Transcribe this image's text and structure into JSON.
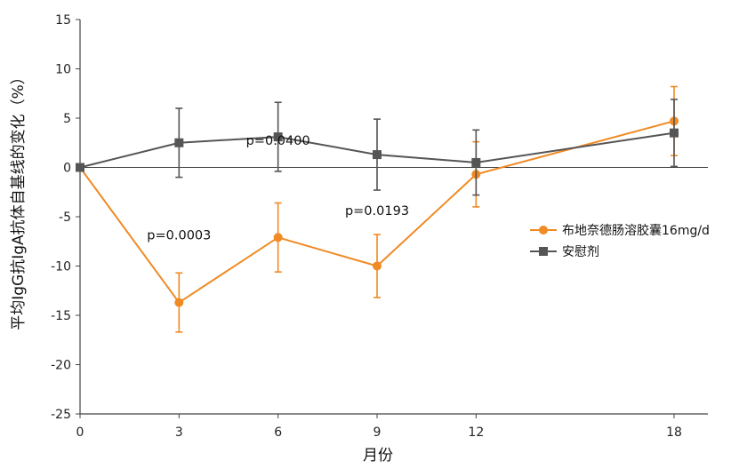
{
  "chart_data": {
    "type": "line",
    "xlabel": "月份",
    "ylabel": "平均IgG抗IgA抗体自基线的变化（%）",
    "x": [
      0,
      3,
      6,
      9,
      12,
      18
    ],
    "x_ticks": [
      "0",
      "3",
      "6",
      "9",
      "12",
      "18"
    ],
    "y_ticks": [
      "15",
      "10",
      "5",
      "0",
      "-5",
      "-10",
      "-15",
      "-20",
      "-25"
    ],
    "xlim": [
      0,
      19
    ],
    "ylim": [
      -25,
      15
    ],
    "grid": false,
    "legend_position": "right",
    "series": [
      {
        "name": "布地奈德肠溶胶囊16mg/d",
        "color": "#f08a24",
        "marker": "circle",
        "values": [
          0,
          -13.7,
          -7.1,
          -10.0,
          -0.7,
          4.7
        ],
        "error": [
          0,
          3.0,
          3.5,
          3.2,
          3.3,
          3.5
        ]
      },
      {
        "name": "安慰剂",
        "color": "#555555",
        "marker": "square",
        "values": [
          0,
          2.5,
          3.1,
          1.3,
          0.5,
          3.5
        ],
        "error": [
          0,
          3.5,
          3.5,
          3.6,
          3.3,
          3.4
        ]
      }
    ],
    "annotations": [
      {
        "text": "p=0.0003",
        "x": 3,
        "y": -7.3
      },
      {
        "text": "p=0.0400",
        "x": 6,
        "y": 2.3
      },
      {
        "text": "p=0.0193",
        "x": 9,
        "y": -4.8
      }
    ]
  }
}
